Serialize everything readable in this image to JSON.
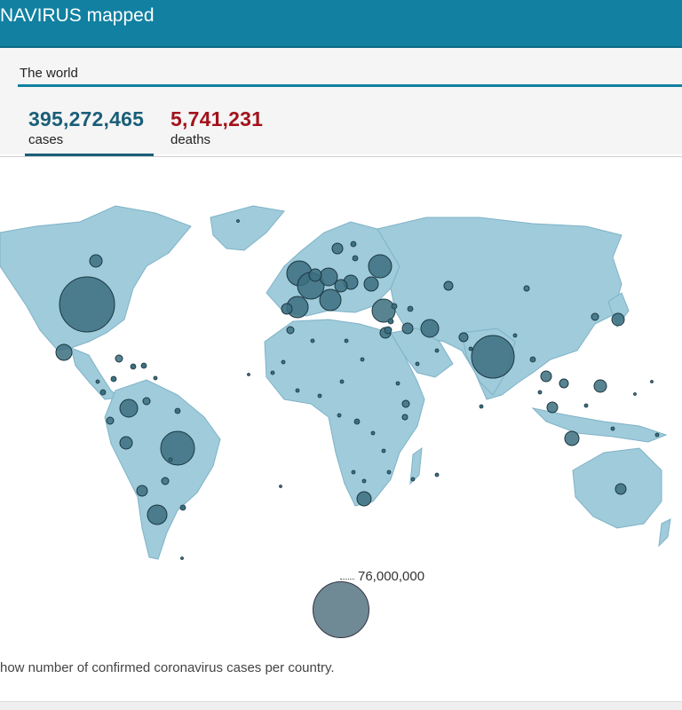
{
  "header": {
    "title": "NAVIRUS mapped"
  },
  "tabs": [
    {
      "label": "The world"
    }
  ],
  "stats": {
    "cases": {
      "value": "395,272,465",
      "label": "cases",
      "color": "#1a5e78"
    },
    "deaths": {
      "value": "5,741,231",
      "label": "deaths",
      "color": "#a3121b"
    }
  },
  "legend": {
    "value": "76,000,000"
  },
  "footnote": "how number of confirmed coronavirus cases per country.",
  "colors": {
    "header": "#1180a1",
    "land": "#9fcbdb",
    "bubble": "#3b6f7f"
  }
}
